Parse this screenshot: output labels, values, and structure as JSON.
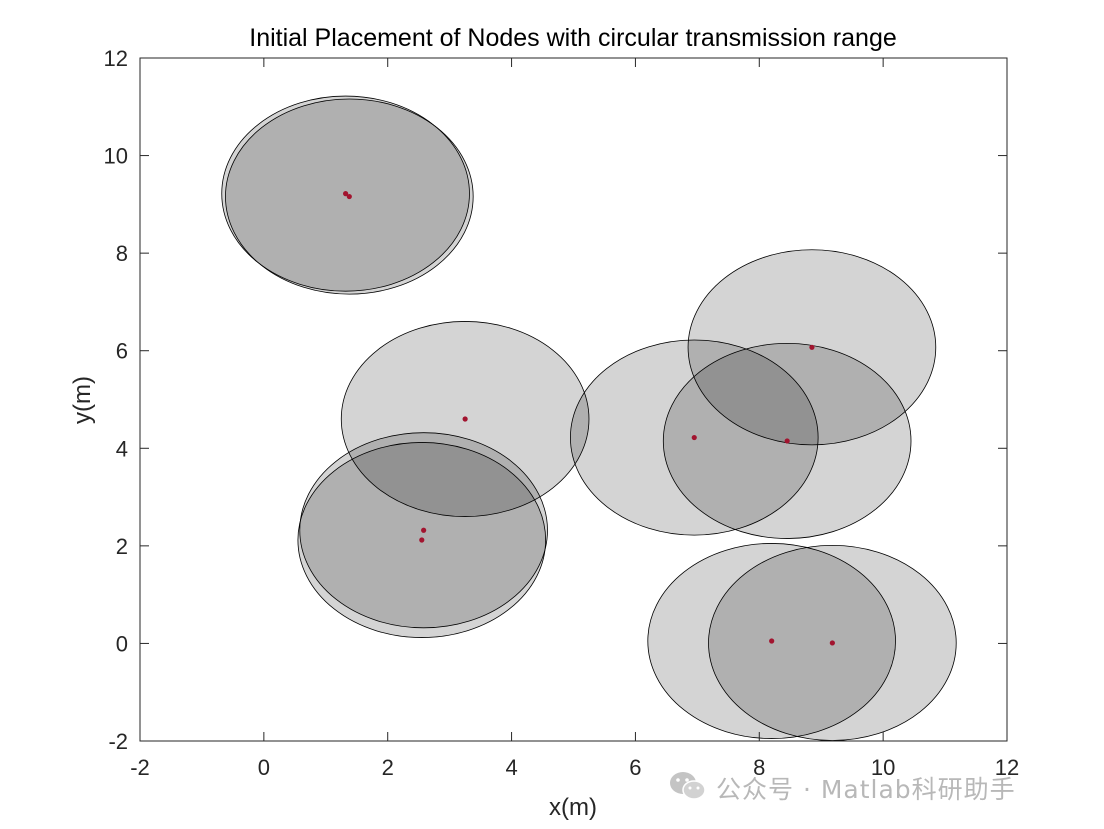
{
  "chart_data": {
    "type": "scatter",
    "title": "Initial Placement of Nodes with circular transmission range",
    "xlabel": "x(m)",
    "ylabel": "y(m)",
    "xlim": [
      -2,
      12
    ],
    "ylim": [
      -2,
      12
    ],
    "x_ticks": [
      "-2",
      "0",
      "2",
      "4",
      "6",
      "8",
      "10",
      "12"
    ],
    "y_ticks": [
      "-2",
      "0",
      "2",
      "4",
      "6",
      "8",
      "10",
      "12"
    ],
    "grid": false,
    "transmission_range": 2,
    "node_color": "#a2142f",
    "range_fill_color": "#000000",
    "range_edge_color": "#000000",
    "nodes": [
      {
        "x": 1.32,
        "y": 9.22
      },
      {
        "x": 1.38,
        "y": 9.16
      },
      {
        "x": 3.25,
        "y": 4.6
      },
      {
        "x": 2.55,
        "y": 2.12
      },
      {
        "x": 2.58,
        "y": 2.32
      },
      {
        "x": 6.95,
        "y": 4.22
      },
      {
        "x": 8.45,
        "y": 4.15
      },
      {
        "x": 8.85,
        "y": 6.07
      },
      {
        "x": 8.2,
        "y": 0.05
      },
      {
        "x": 9.18,
        "y": 0.01
      }
    ]
  },
  "watermark": {
    "text": "公众号 · Matlab科研助手",
    "icon": "wechat-icon"
  }
}
